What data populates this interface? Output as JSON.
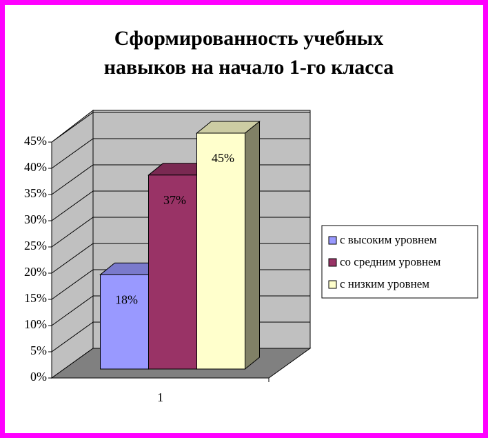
{
  "chart_data": {
    "type": "bar3d",
    "title": "Сформированность учебных навыков на начало 1-го класса",
    "categories": [
      "1"
    ],
    "series": [
      {
        "name": "с высоким уровнем",
        "color": "#9999ff",
        "values": [
          18
        ],
        "value_labels": [
          "18%"
        ]
      },
      {
        "name": "со средним уровнем",
        "color": "#993366",
        "values": [
          37
        ],
        "value_labels": [
          "37%"
        ]
      },
      {
        "name": "с низким уровнем",
        "color": "#ffffcc",
        "values": [
          45
        ],
        "value_labels": [
          "45%"
        ]
      }
    ],
    "ylim": [
      0,
      45
    ],
    "yticks": [
      {
        "value": 0,
        "label": "0%"
      },
      {
        "value": 5,
        "label": "5%"
      },
      {
        "value": 10,
        "label": "10%"
      },
      {
        "value": 15,
        "label": "15%"
      },
      {
        "value": 20,
        "label": "20%"
      },
      {
        "value": 25,
        "label": "25%"
      },
      {
        "value": 30,
        "label": "30%"
      },
      {
        "value": 35,
        "label": "35%"
      },
      {
        "value": 40,
        "label": "40%"
      },
      {
        "value": 45,
        "label": "45%"
      }
    ],
    "grid": true,
    "legend": "right"
  }
}
